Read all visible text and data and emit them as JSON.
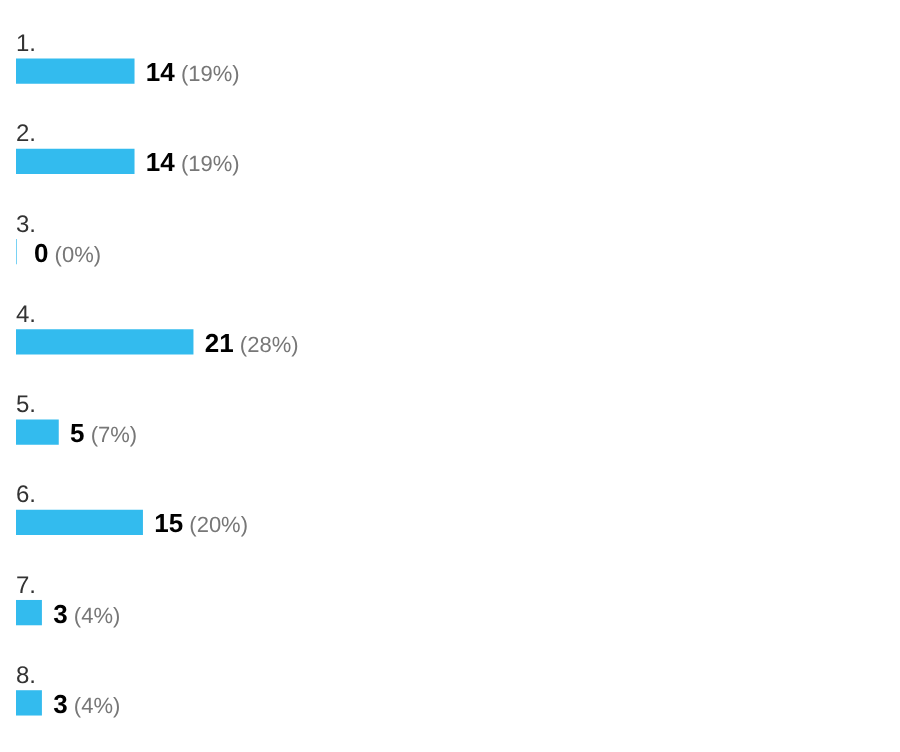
{
  "chart_data": {
    "type": "bar",
    "orientation": "horizontal",
    "categories": [
      "1.",
      "2.",
      "3.",
      "4.",
      "5.",
      "6.",
      "7.",
      "8."
    ],
    "values": [
      14,
      14,
      0,
      21,
      5,
      15,
      3,
      3
    ],
    "value_labels": [
      "14 (19%)",
      "14 (19%)",
      "0 (0%)",
      "21 (28%)",
      "5 (7%)",
      "15 (20%)",
      "3 (4%)",
      "3 (4%)"
    ],
    "color": "#33bbee",
    "legend": false
  }
}
